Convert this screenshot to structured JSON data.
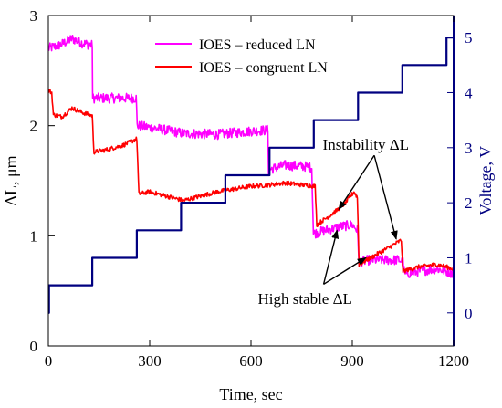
{
  "chart_data": {
    "type": "line",
    "xlabel": "Time, sec",
    "ylabel_left": "ΔL, μm",
    "ylabel_right": "Voltage, V",
    "xlim": [
      0,
      1200
    ],
    "ylim_left": [
      0,
      3
    ],
    "ylim_right": [
      -0.6,
      5.4
    ],
    "x_ticks": [
      0,
      300,
      600,
      900,
      1200
    ],
    "y_left_ticks": [
      0,
      1,
      2,
      3
    ],
    "y_right_ticks": [
      0,
      1,
      2,
      3,
      4,
      5
    ],
    "grid": false,
    "legend_position": "top-center",
    "series": [
      {
        "name": "IOES – reduced LN",
        "color": "#ff00ff",
        "axis": "left",
        "noise": 0.045,
        "x": [
          0,
          40,
          70,
          100,
          130,
          131,
          260,
          263,
          310,
          400,
          500,
          600,
          650,
          652,
          700,
          760,
          780,
          785,
          860,
          900,
          915,
          920,
          950,
          1040,
          1050,
          1055,
          1100,
          1150,
          1200
        ],
        "values": [
          2.7,
          2.74,
          2.79,
          2.75,
          2.73,
          2.25,
          2.25,
          2.0,
          1.98,
          1.93,
          1.92,
          1.95,
          1.96,
          1.6,
          1.64,
          1.63,
          1.62,
          1.02,
          1.08,
          1.1,
          1.05,
          0.76,
          0.78,
          0.78,
          0.76,
          0.65,
          0.68,
          0.7,
          0.66
        ]
      },
      {
        "name": "IOES – congruent LN",
        "color": "#ff0000",
        "axis": "left",
        "noise": 0.02,
        "x": [
          0,
          10,
          15,
          40,
          70,
          100,
          130,
          135,
          170,
          220,
          262,
          268,
          300,
          400,
          500,
          600,
          650,
          700,
          760,
          790,
          795,
          850,
          880,
          905,
          915,
          920,
          1000,
          1045,
          1050,
          1100,
          1150,
          1200
        ],
        "values": [
          2.32,
          2.3,
          2.1,
          2.08,
          2.16,
          2.12,
          2.09,
          1.76,
          1.78,
          1.82,
          1.88,
          1.38,
          1.4,
          1.32,
          1.4,
          1.45,
          1.46,
          1.48,
          1.46,
          1.45,
          1.1,
          1.22,
          1.3,
          1.4,
          1.35,
          0.74,
          0.88,
          0.96,
          0.68,
          0.72,
          0.74,
          0.7
        ]
      },
      {
        "name": "Voltage",
        "color": "#000080",
        "axis": "right",
        "step": true,
        "x": [
          0,
          2,
          130,
          262,
          393,
          524,
          655,
          786,
          917,
          1048,
          1179,
          1200
        ],
        "values": [
          0,
          0.5,
          1,
          1.5,
          2,
          2.5,
          3,
          3.5,
          4,
          4.5,
          5,
          5
        ]
      }
    ],
    "annotations": [
      {
        "text": "Instability ΔL",
        "x": 940,
        "y": 1.78
      },
      {
        "text": "High stable ΔL",
        "x": 760,
        "y": 0.38
      }
    ],
    "arrows": [
      {
        "from": [
          965,
          1.73
        ],
        "to": [
          860,
          1.24
        ]
      },
      {
        "from": [
          965,
          1.73
        ],
        "to": [
          1030,
          0.97
        ]
      },
      {
        "from": [
          815,
          0.56
        ],
        "to": [
          855,
          1.05
        ]
      },
      {
        "from": [
          815,
          0.56
        ],
        "to": [
          940,
          0.8
        ]
      }
    ]
  }
}
